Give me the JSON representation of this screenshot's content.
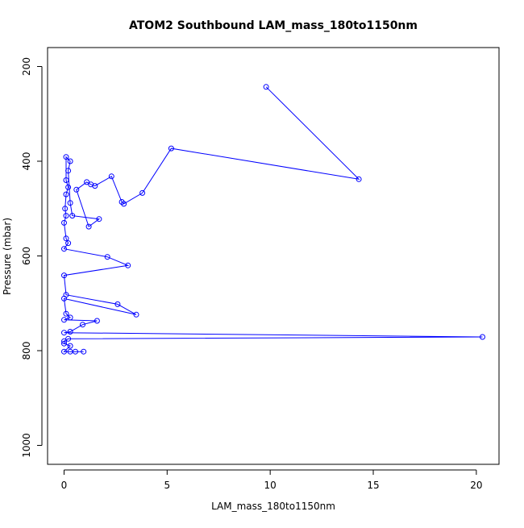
{
  "chart_data": {
    "type": "scatter",
    "title": "ATOM2 Southbound LAM_mass_180to1150nm",
    "xlabel": "LAM_mass_180to1150nm",
    "ylabel": "Pressure (mbar)",
    "x_ticks": [
      "0",
      "5",
      "10",
      "15",
      "20"
    ],
    "y_ticks": [
      "200",
      "400",
      "600",
      "800",
      "1000"
    ],
    "xlim": [
      -0.8,
      21.1
    ],
    "ylim": [
      1040,
      160
    ],
    "y_reversed": true,
    "grid": false,
    "legend": "none",
    "color": "#0000ff",
    "marker": "open-circle",
    "series": [
      {
        "points": [
          [
            9.8,
            243
          ],
          [
            14.3,
            438
          ],
          [
            5.2,
            373
          ],
          [
            3.8,
            467
          ],
          [
            2.9,
            490
          ],
          [
            2.8,
            486
          ],
          [
            2.3,
            432
          ],
          [
            1.5,
            452
          ],
          [
            1.3,
            449
          ],
          [
            1.1,
            444
          ],
          [
            0.6,
            460
          ],
          [
            1.2,
            538
          ],
          [
            1.7,
            522
          ],
          [
            0.4,
            515
          ],
          [
            0.3,
            488
          ],
          [
            0.2,
            420
          ],
          [
            0.3,
            400
          ],
          [
            0.1,
            391
          ],
          [
            0.1,
            440
          ],
          [
            0.2,
            455
          ],
          [
            0.1,
            470
          ],
          [
            0.05,
            500
          ],
          [
            0.1,
            515
          ],
          [
            0.0,
            530
          ],
          [
            0.1,
            563
          ],
          [
            0.2,
            573
          ],
          [
            0.0,
            585
          ],
          [
            2.1,
            602
          ],
          [
            3.1,
            620
          ],
          [
            0.0,
            641
          ],
          [
            0.1,
            682
          ],
          [
            2.6,
            702
          ],
          [
            3.5,
            724
          ],
          [
            0.0,
            690
          ],
          [
            0.1,
            722
          ],
          [
            0.3,
            730
          ],
          [
            0.0,
            735
          ],
          [
            1.6,
            737
          ],
          [
            0.9,
            745
          ],
          [
            0.3,
            760
          ],
          [
            0.0,
            762
          ],
          [
            20.3,
            771
          ],
          [
            0.2,
            775
          ],
          [
            0.0,
            780
          ],
          [
            0.0,
            785
          ],
          [
            0.3,
            790
          ],
          [
            0.0,
            802
          ],
          [
            0.3,
            802
          ],
          [
            0.55,
            802
          ],
          [
            0.95,
            802
          ]
        ]
      }
    ]
  }
}
